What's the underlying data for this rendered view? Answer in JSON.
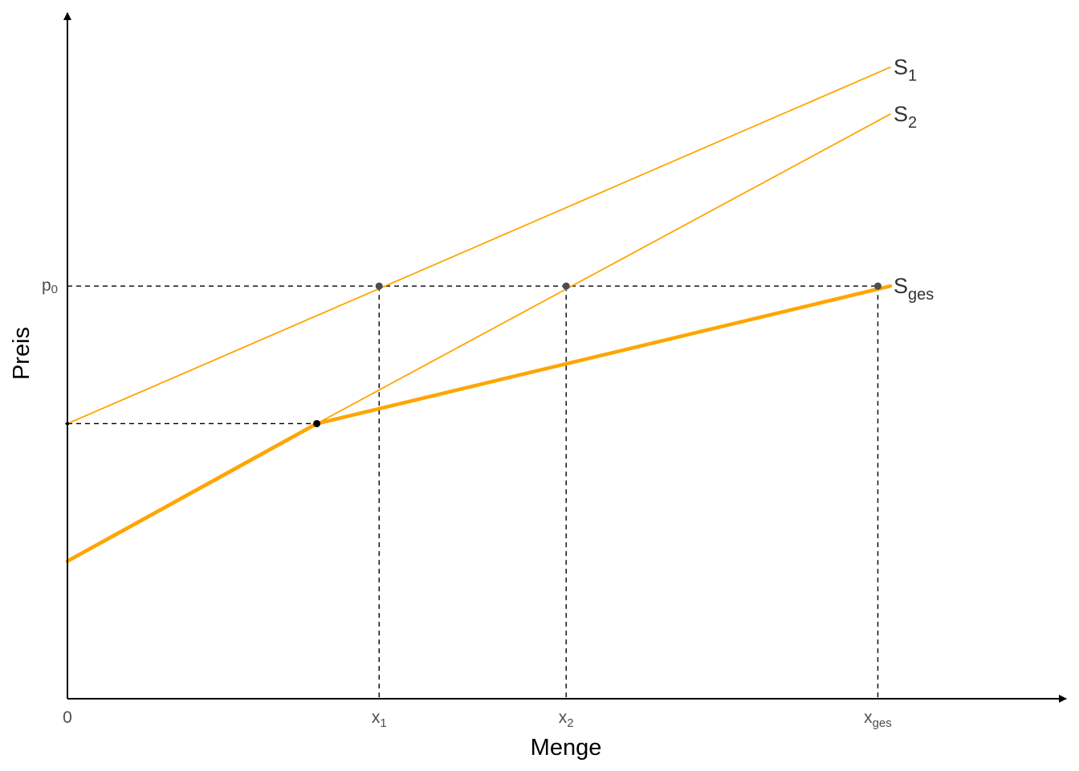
{
  "chart_data": {
    "type": "line",
    "xlabel": "Menge",
    "ylabel": "Preis",
    "xlim": [
      0,
      16
    ],
    "ylim": [
      0,
      11
    ],
    "color": "#FFA500",
    "series": [
      {
        "name": "S",
        "name_sub": "1",
        "x": [
          0,
          13.2
        ],
        "y": [
          4.4,
          10.1
        ],
        "style": "thin"
      },
      {
        "name": "S",
        "name_sub": "2",
        "x": [
          4.0,
          13.2
        ],
        "y": [
          4.4,
          9.35
        ],
        "style": "thin"
      },
      {
        "name": "S",
        "name_sub": "ges",
        "x": [
          0,
          4.0,
          13.2
        ],
        "y": [
          2.2,
          4.4,
          6.6
        ],
        "style": "thick"
      },
      {
        "name": "",
        "name_sub": "",
        "x": [
          0,
          4.0
        ],
        "y": [
          2.2,
          4.4
        ],
        "style": "thick-segment"
      }
    ],
    "x_ticks": [
      {
        "value": 0,
        "label": "0",
        "sub": ""
      },
      {
        "value": 5,
        "label": "x",
        "sub": "1"
      },
      {
        "value": 8,
        "label": "x",
        "sub": "2"
      },
      {
        "value": 13,
        "label": "x",
        "sub": "ges"
      }
    ],
    "y_ticks": [
      {
        "value": 6.6,
        "label": "p",
        "sub": "0"
      }
    ],
    "guides": {
      "price_level": 6.6,
      "kink_price": 4.4,
      "kink_x": 4.0,
      "quantities": [
        5,
        8,
        13
      ]
    },
    "points": [
      {
        "x": 4.0,
        "y": 4.4,
        "color": "#000000"
      },
      {
        "x": 5,
        "y": 6.6,
        "color": "#4d4d4d"
      },
      {
        "x": 8,
        "y": 6.6,
        "color": "#4d4d4d"
      },
      {
        "x": 13,
        "y": 6.6,
        "color": "#4d4d4d"
      }
    ]
  }
}
